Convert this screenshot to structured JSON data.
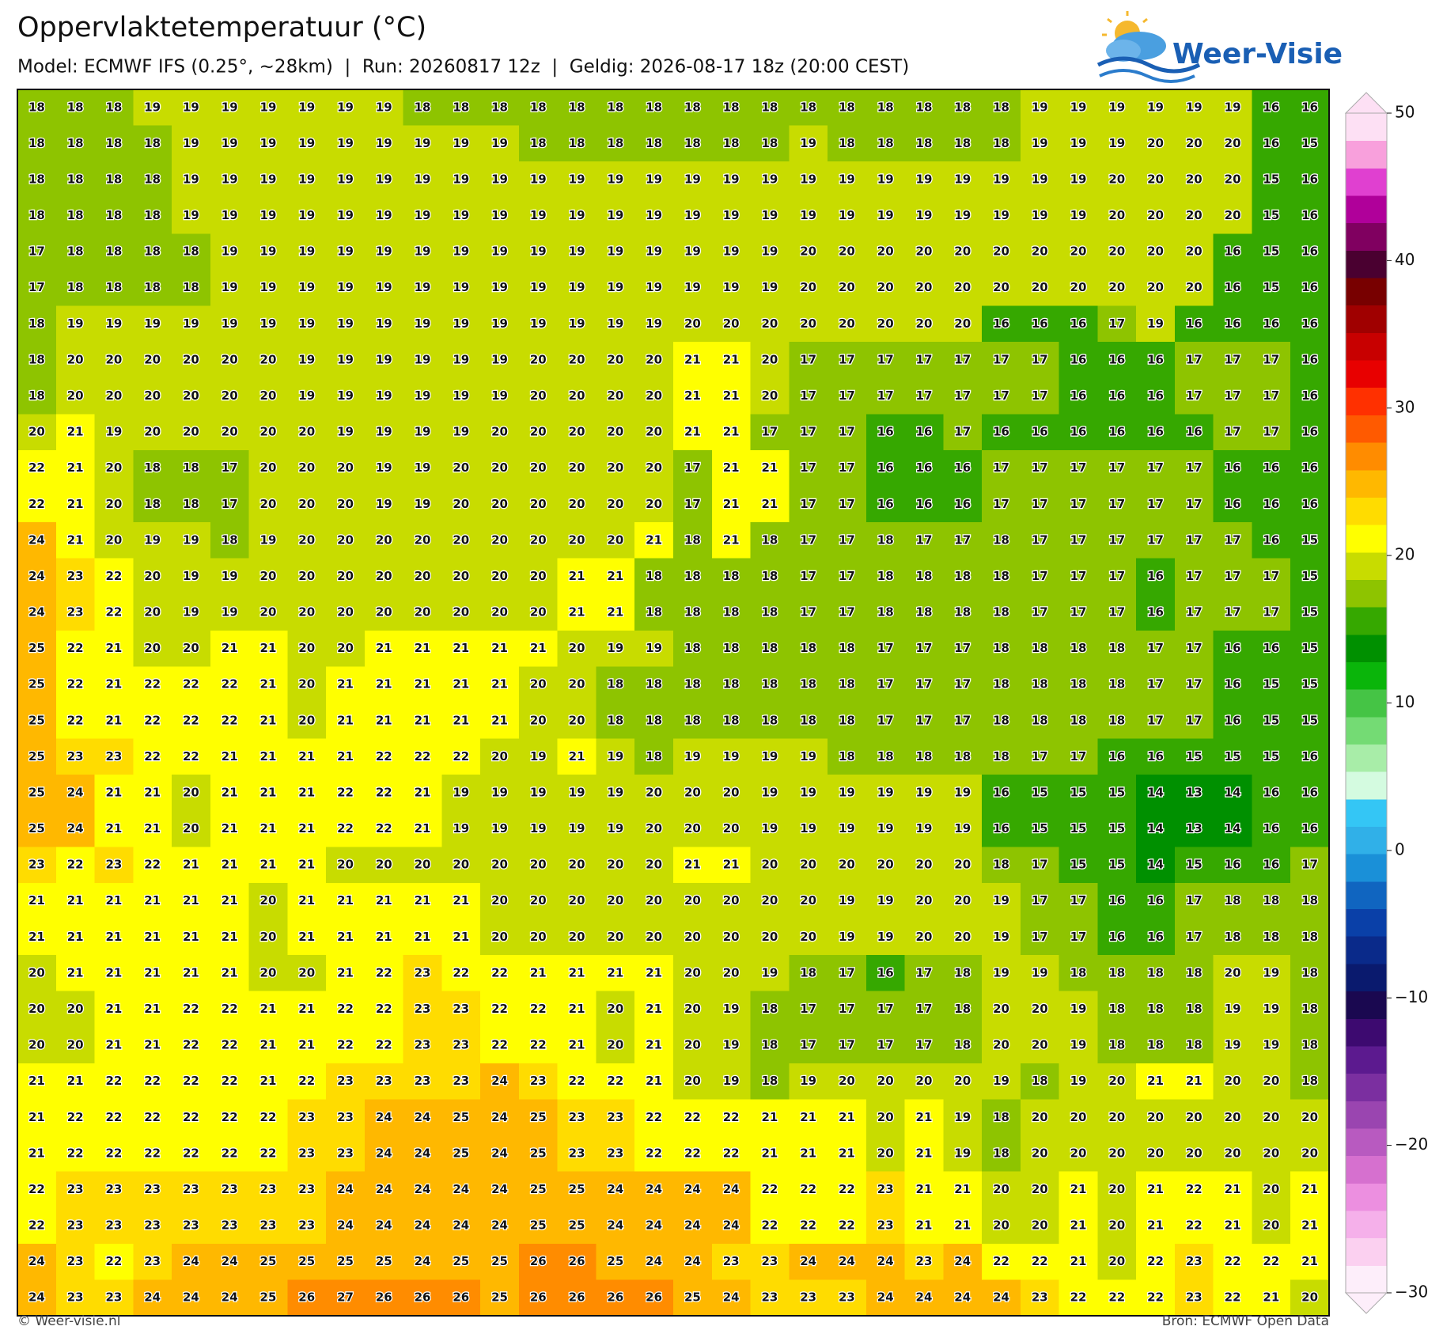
{
  "header": {
    "title": "Oppervlaktetemperatuur (°C)",
    "subtitle": "Model: ECMWF IFS (0.25°, ~28km)  |  Run: 20260817 12z  |  Geldig: 2026-08-17 18z (20:00 CEST)",
    "logo_text": "Weer-Visie"
  },
  "grid": {
    "rows": [
      [
        18,
        18,
        18,
        19,
        19,
        19,
        19,
        19,
        19,
        19,
        18,
        18,
        18,
        18,
        18,
        18,
        18,
        18,
        18,
        18,
        18,
        18,
        18,
        18,
        18,
        18,
        19,
        19,
        19,
        19,
        19,
        19,
        16,
        16
      ],
      [
        18,
        18,
        18,
        18,
        19,
        19,
        19,
        19,
        19,
        19,
        19,
        19,
        19,
        18,
        18,
        18,
        18,
        18,
        18,
        18,
        19,
        18,
        18,
        18,
        18,
        18,
        19,
        19,
        19,
        20,
        20,
        20,
        16,
        15
      ],
      [
        18,
        18,
        18,
        18,
        19,
        19,
        19,
        19,
        19,
        19,
        19,
        19,
        19,
        19,
        19,
        19,
        19,
        19,
        19,
        19,
        19,
        19,
        19,
        19,
        19,
        19,
        19,
        19,
        20,
        20,
        20,
        20,
        15,
        16
      ],
      [
        18,
        18,
        18,
        18,
        19,
        19,
        19,
        19,
        19,
        19,
        19,
        19,
        19,
        19,
        19,
        19,
        19,
        19,
        19,
        19,
        19,
        19,
        19,
        19,
        19,
        19,
        19,
        19,
        20,
        20,
        20,
        20,
        15,
        16
      ],
      [
        17,
        18,
        18,
        18,
        18,
        19,
        19,
        19,
        19,
        19,
        19,
        19,
        19,
        19,
        19,
        19,
        19,
        19,
        19,
        19,
        20,
        20,
        20,
        20,
        20,
        20,
        20,
        20,
        20,
        20,
        20,
        16,
        15,
        16
      ],
      [
        17,
        18,
        18,
        18,
        18,
        19,
        19,
        19,
        19,
        19,
        19,
        19,
        19,
        19,
        19,
        19,
        19,
        19,
        19,
        19,
        20,
        20,
        20,
        20,
        20,
        20,
        20,
        20,
        20,
        20,
        20,
        16,
        15,
        16
      ],
      [
        18,
        19,
        19,
        19,
        19,
        19,
        19,
        19,
        19,
        19,
        19,
        19,
        19,
        19,
        19,
        19,
        19,
        20,
        20,
        20,
        20,
        20,
        20,
        20,
        20,
        16,
        16,
        16,
        17,
        19,
        16,
        16,
        16,
        16
      ],
      [
        18,
        20,
        20,
        20,
        20,
        20,
        20,
        19,
        19,
        19,
        19,
        19,
        19,
        20,
        20,
        20,
        20,
        21,
        21,
        20,
        17,
        17,
        17,
        17,
        17,
        17,
        17,
        16,
        16,
        16,
        17,
        17,
        17,
        16
      ],
      [
        18,
        20,
        20,
        20,
        20,
        20,
        20,
        19,
        19,
        19,
        19,
        19,
        19,
        20,
        20,
        20,
        20,
        21,
        21,
        20,
        17,
        17,
        17,
        17,
        17,
        17,
        17,
        16,
        16,
        16,
        17,
        17,
        17,
        16
      ],
      [
        20,
        21,
        19,
        20,
        20,
        20,
        20,
        20,
        19,
        19,
        19,
        19,
        20,
        20,
        20,
        20,
        20,
        21,
        21,
        17,
        17,
        17,
        16,
        16,
        17,
        16,
        16,
        16,
        16,
        16,
        16,
        17,
        17,
        16
      ],
      [
        22,
        21,
        20,
        18,
        18,
        17,
        20,
        20,
        20,
        19,
        19,
        20,
        20,
        20,
        20,
        20,
        20,
        17,
        21,
        21,
        17,
        17,
        16,
        16,
        16,
        17,
        17,
        17,
        17,
        17,
        17,
        16,
        16,
        16
      ],
      [
        22,
        21,
        20,
        18,
        18,
        17,
        20,
        20,
        20,
        19,
        19,
        20,
        20,
        20,
        20,
        20,
        20,
        17,
        21,
        21,
        17,
        17,
        16,
        16,
        16,
        17,
        17,
        17,
        17,
        17,
        17,
        16,
        16,
        16
      ],
      [
        24,
        21,
        20,
        19,
        19,
        18,
        19,
        20,
        20,
        20,
        20,
        20,
        20,
        20,
        20,
        20,
        21,
        18,
        21,
        18,
        17,
        17,
        18,
        17,
        17,
        18,
        17,
        17,
        17,
        17,
        17,
        17,
        16,
        15
      ],
      [
        24,
        23,
        22,
        20,
        19,
        19,
        20,
        20,
        20,
        20,
        20,
        20,
        20,
        20,
        21,
        21,
        18,
        18,
        18,
        18,
        17,
        17,
        18,
        18,
        18,
        18,
        17,
        17,
        17,
        16,
        17,
        17,
        17,
        15
      ],
      [
        24,
        23,
        22,
        20,
        19,
        19,
        20,
        20,
        20,
        20,
        20,
        20,
        20,
        20,
        21,
        21,
        18,
        18,
        18,
        18,
        17,
        17,
        18,
        18,
        18,
        18,
        17,
        17,
        17,
        16,
        17,
        17,
        17,
        15
      ],
      [
        25,
        22,
        21,
        20,
        20,
        21,
        21,
        20,
        20,
        21,
        21,
        21,
        21,
        21,
        20,
        19,
        19,
        18,
        18,
        18,
        18,
        18,
        17,
        17,
        17,
        18,
        18,
        18,
        18,
        17,
        17,
        16,
        16,
        15
      ],
      [
        25,
        22,
        21,
        22,
        22,
        22,
        21,
        20,
        21,
        21,
        21,
        21,
        21,
        20,
        20,
        18,
        18,
        18,
        18,
        18,
        18,
        18,
        17,
        17,
        17,
        18,
        18,
        18,
        18,
        17,
        17,
        16,
        15,
        15
      ],
      [
        25,
        22,
        21,
        22,
        22,
        22,
        21,
        20,
        21,
        21,
        21,
        21,
        21,
        20,
        20,
        18,
        18,
        18,
        18,
        18,
        18,
        18,
        17,
        17,
        17,
        18,
        18,
        18,
        18,
        17,
        17,
        16,
        15,
        15
      ],
      [
        25,
        23,
        23,
        22,
        22,
        21,
        21,
        21,
        21,
        22,
        22,
        22,
        20,
        19,
        21,
        19,
        18,
        19,
        19,
        19,
        19,
        18,
        18,
        18,
        18,
        18,
        17,
        17,
        16,
        16,
        15,
        15,
        15,
        16
      ],
      [
        25,
        24,
        21,
        21,
        20,
        21,
        21,
        21,
        22,
        22,
        21,
        19,
        19,
        19,
        19,
        19,
        20,
        20,
        20,
        19,
        19,
        19,
        19,
        19,
        19,
        16,
        15,
        15,
        15,
        14,
        13,
        14,
        16,
        16
      ],
      [
        25,
        24,
        21,
        21,
        20,
        21,
        21,
        21,
        22,
        22,
        21,
        19,
        19,
        19,
        19,
        19,
        20,
        20,
        20,
        19,
        19,
        19,
        19,
        19,
        19,
        16,
        15,
        15,
        15,
        14,
        13,
        14,
        16,
        16
      ],
      [
        23,
        22,
        23,
        22,
        21,
        21,
        21,
        21,
        20,
        20,
        20,
        20,
        20,
        20,
        20,
        20,
        20,
        21,
        21,
        20,
        20,
        20,
        20,
        20,
        20,
        18,
        17,
        15,
        15,
        14,
        15,
        16,
        16,
        17
      ],
      [
        21,
        21,
        21,
        21,
        21,
        21,
        20,
        21,
        21,
        21,
        21,
        21,
        20,
        20,
        20,
        20,
        20,
        20,
        20,
        20,
        20,
        19,
        19,
        20,
        20,
        19,
        17,
        17,
        16,
        16,
        17,
        18,
        18,
        18
      ],
      [
        21,
        21,
        21,
        21,
        21,
        21,
        20,
        21,
        21,
        21,
        21,
        21,
        20,
        20,
        20,
        20,
        20,
        20,
        20,
        20,
        20,
        19,
        19,
        20,
        20,
        19,
        17,
        17,
        16,
        16,
        17,
        18,
        18,
        18
      ],
      [
        20,
        21,
        21,
        21,
        21,
        21,
        20,
        20,
        21,
        22,
        23,
        22,
        22,
        21,
        21,
        21,
        21,
        20,
        20,
        19,
        18,
        17,
        16,
        17,
        18,
        19,
        19,
        18,
        18,
        18,
        18,
        20,
        19,
        18
      ],
      [
        20,
        20,
        21,
        21,
        22,
        22,
        21,
        21,
        22,
        22,
        23,
        23,
        22,
        22,
        21,
        20,
        21,
        20,
        19,
        18,
        17,
        17,
        17,
        17,
        18,
        20,
        20,
        19,
        18,
        18,
        18,
        19,
        19,
        18
      ],
      [
        20,
        20,
        21,
        21,
        22,
        22,
        21,
        21,
        22,
        22,
        23,
        23,
        22,
        22,
        21,
        20,
        21,
        20,
        19,
        18,
        17,
        17,
        17,
        17,
        18,
        20,
        20,
        19,
        18,
        18,
        18,
        19,
        19,
        18
      ],
      [
        21,
        21,
        22,
        22,
        22,
        22,
        21,
        22,
        23,
        23,
        23,
        23,
        24,
        23,
        22,
        22,
        21,
        20,
        19,
        18,
        19,
        20,
        20,
        20,
        20,
        19,
        18,
        19,
        20,
        21,
        21,
        20,
        20,
        18
      ],
      [
        21,
        22,
        22,
        22,
        22,
        22,
        22,
        23,
        23,
        24,
        24,
        25,
        24,
        25,
        23,
        23,
        22,
        22,
        22,
        21,
        21,
        21,
        20,
        21,
        19,
        18,
        20,
        20,
        20,
        20,
        20,
        20,
        20,
        20
      ],
      [
        21,
        22,
        22,
        22,
        22,
        22,
        22,
        23,
        23,
        24,
        24,
        25,
        24,
        25,
        23,
        23,
        22,
        22,
        22,
        21,
        21,
        21,
        20,
        21,
        19,
        18,
        20,
        20,
        20,
        20,
        20,
        20,
        20,
        20
      ],
      [
        22,
        23,
        23,
        23,
        23,
        23,
        23,
        23,
        24,
        24,
        24,
        24,
        24,
        25,
        25,
        24,
        24,
        24,
        24,
        22,
        22,
        22,
        23,
        21,
        21,
        20,
        20,
        21,
        20,
        21,
        22,
        21,
        20,
        21
      ],
      [
        22,
        23,
        23,
        23,
        23,
        23,
        23,
        23,
        24,
        24,
        24,
        24,
        24,
        25,
        25,
        24,
        24,
        24,
        24,
        22,
        22,
        22,
        23,
        21,
        21,
        20,
        20,
        21,
        20,
        21,
        22,
        21,
        20,
        21
      ],
      [
        24,
        23,
        22,
        23,
        24,
        24,
        25,
        25,
        25,
        25,
        24,
        25,
        25,
        26,
        26,
        25,
        24,
        24,
        23,
        23,
        24,
        24,
        24,
        23,
        24,
        22,
        22,
        21,
        20,
        22,
        23,
        22,
        22,
        21
      ],
      [
        24,
        23,
        23,
        24,
        24,
        24,
        25,
        26,
        27,
        26,
        26,
        26,
        25,
        26,
        26,
        26,
        26,
        25,
        24,
        23,
        23,
        23,
        24,
        24,
        24,
        24,
        23,
        22,
        22,
        22,
        23,
        22,
        21,
        20
      ]
    ]
  },
  "colorbar": {
    "lim": [
      -30,
      50
    ],
    "colors": [
      "#fdeefa",
      "#fbd0f0",
      "#f5b0ea",
      "#ec8fe0",
      "#d670cf",
      "#b85ac0",
      "#9a45b0",
      "#7b2fa0",
      "#5c1a8f",
      "#3d0a70",
      "#1a0850",
      "#0a1a6e",
      "#0a2a8a",
      "#0a40a8",
      "#1065c0",
      "#1a90d8",
      "#30b0e8",
      "#34c6f5",
      "#d4fbe0",
      "#a8eda8",
      "#74db74",
      "#45c445",
      "#0ab50a",
      "#009000",
      "#36a800",
      "#8ec400",
      "#c8dc00",
      "#ffff00",
      "#ffdc00",
      "#ffb800",
      "#ff8c00",
      "#ff5a00",
      "#ff3000",
      "#e80000",
      "#c80000",
      "#a00000",
      "#780000",
      "#4a0030",
      "#800060",
      "#b0009a",
      "#e040d0",
      "#f8a0dc",
      "#fde0f4"
    ],
    "ticks": [
      50,
      40,
      30,
      20,
      10,
      0,
      {
        "value": -10,
        "label": "−10"
      },
      {
        "value": -20,
        "label": "−20"
      },
      {
        "value": -30,
        "label": "−30"
      }
    ]
  },
  "footer": {
    "left": "© Weer-visie.nl",
    "right": "Bron: ECMWF Open Data"
  }
}
